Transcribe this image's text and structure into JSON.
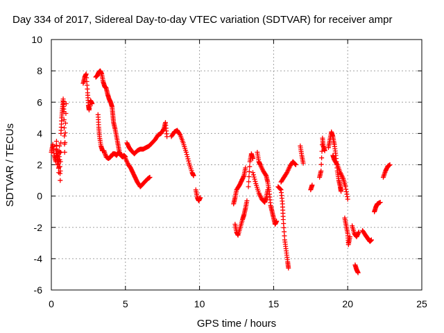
{
  "chart_data": {
    "type": "scatter",
    "title": "Day 334 of 2017, Sidereal Day-to-day VTEC variation (SDTVAR) for receiver ampr",
    "xlabel": "GPS time / hours",
    "ylabel": "SDTVAR / TECUs",
    "xlim": [
      0,
      25
    ],
    "ylim": [
      -6,
      10
    ],
    "xticks": [
      0,
      5,
      10,
      15,
      20,
      25
    ],
    "yticks": [
      -6,
      -4,
      -2,
      0,
      2,
      4,
      6,
      8,
      10
    ],
    "x_tick_labels": [
      "0",
      "5",
      "10",
      "15",
      "20",
      "25"
    ],
    "y_tick_labels": [
      "-6",
      "-4",
      "-2",
      "0",
      "2",
      "4",
      "6",
      "8",
      "10"
    ],
    "grid": true,
    "marker": "+",
    "marker_color": "#ff0000",
    "series": [
      {
        "name": "SDTVAR",
        "segments": [
          [
            [
              0.0,
              2.8
            ],
            [
              0.1,
              3.3
            ],
            [
              0.2,
              2.6
            ],
            [
              0.3,
              2.2
            ],
            [
              0.35,
              3.5
            ],
            [
              0.4,
              2.0
            ],
            [
              0.45,
              2.9
            ],
            [
              0.5,
              1.5
            ],
            [
              0.55,
              3.2
            ],
            [
              0.6,
              1.0
            ],
            [
              0.65,
              4.0
            ],
            [
              0.7,
              5.0
            ],
            [
              0.75,
              5.6
            ],
            [
              0.8,
              6.2
            ],
            [
              0.85,
              5.4
            ],
            [
              0.9,
              2.8
            ],
            [
              1.0,
              5.9
            ]
          ],
          [
            [
              2.15,
              7.2
            ],
            [
              2.25,
              7.6
            ],
            [
              2.35,
              7.8
            ],
            [
              2.45,
              6.6
            ],
            [
              2.5,
              5.8
            ],
            [
              2.55,
              5.5
            ],
            [
              2.65,
              6.1
            ],
            [
              2.75,
              5.9
            ]
          ],
          [
            [
              3.0,
              7.6
            ],
            [
              3.1,
              7.7
            ],
            [
              3.2,
              7.9
            ],
            [
              3.3,
              8.0
            ],
            [
              3.4,
              7.8
            ],
            [
              3.5,
              7.3
            ],
            [
              3.6,
              7.0
            ],
            [
              3.7,
              6.9
            ],
            [
              3.8,
              6.5
            ],
            [
              3.9,
              6.2
            ],
            [
              4.0,
              6.0
            ],
            [
              4.1,
              5.7
            ],
            [
              4.15,
              5.2
            ],
            [
              4.2,
              4.7
            ],
            [
              4.3,
              4.3
            ],
            [
              4.4,
              3.8
            ],
            [
              4.5,
              3.3
            ],
            [
              4.6,
              2.8
            ],
            [
              4.7,
              2.6
            ],
            [
              4.8,
              2.5
            ],
            [
              4.9,
              2.6
            ],
            [
              5.0,
              2.5
            ]
          ],
          [
            [
              3.15,
              5.2
            ],
            [
              3.2,
              4.4
            ],
            [
              3.25,
              3.8
            ],
            [
              3.35,
              3.2
            ],
            [
              3.45,
              2.9
            ],
            [
              3.55,
              2.9
            ],
            [
              3.7,
              2.5
            ],
            [
              3.85,
              2.4
            ],
            [
              4.0,
              2.5
            ],
            [
              4.15,
              2.7
            ],
            [
              4.3,
              2.7
            ],
            [
              4.4,
              2.6
            ],
            [
              4.55,
              2.8
            ]
          ],
          [
            [
              5.1,
              3.4
            ],
            [
              5.25,
              3.1
            ],
            [
              5.4,
              2.9
            ],
            [
              5.6,
              2.7
            ],
            [
              5.8,
              2.9
            ],
            [
              6.0,
              3.0
            ],
            [
              6.2,
              3.0
            ],
            [
              6.4,
              3.1
            ],
            [
              6.6,
              3.2
            ],
            [
              6.8,
              3.4
            ],
            [
              7.0,
              3.6
            ],
            [
              7.2,
              3.9
            ],
            [
              7.4,
              4.0
            ],
            [
              7.6,
              4.3
            ],
            [
              7.7,
              4.7
            ],
            [
              7.8,
              3.8
            ]
          ],
          [
            [
              5.0,
              2.4
            ],
            [
              5.2,
              2.0
            ],
            [
              5.35,
              1.8
            ],
            [
              5.5,
              1.5
            ],
            [
              5.65,
              1.2
            ],
            [
              5.8,
              0.9
            ],
            [
              6.0,
              0.6
            ],
            [
              6.1,
              0.7
            ],
            [
              6.3,
              0.9
            ],
            [
              6.5,
              1.1
            ],
            [
              6.65,
              1.2
            ]
          ],
          [
            [
              8.1,
              3.8
            ],
            [
              8.3,
              4.1
            ],
            [
              8.5,
              4.2
            ],
            [
              8.7,
              3.9
            ],
            [
              8.9,
              3.4
            ],
            [
              9.1,
              2.8
            ],
            [
              9.3,
              2.1
            ],
            [
              9.5,
              1.5
            ],
            [
              9.6,
              1.3
            ]
          ],
          [
            [
              9.75,
              0.4
            ],
            [
              9.85,
              -0.1
            ],
            [
              9.95,
              -0.3
            ],
            [
              10.05,
              -0.1
            ]
          ],
          [
            [
              12.3,
              -0.5
            ],
            [
              12.4,
              -0.1
            ],
            [
              12.5,
              0.4
            ],
            [
              12.7,
              0.7
            ],
            [
              12.85,
              1.0
            ],
            [
              13.0,
              1.3
            ],
            [
              13.1,
              1.8
            ]
          ],
          [
            [
              12.4,
              -1.8
            ],
            [
              12.5,
              -2.3
            ],
            [
              12.6,
              -2.5
            ],
            [
              12.75,
              -2.0
            ],
            [
              12.9,
              -1.5
            ],
            [
              13.0,
              -1.2
            ],
            [
              13.1,
              -0.8
            ],
            [
              13.2,
              -0.3
            ]
          ],
          [
            [
              13.3,
              0.6
            ],
            [
              13.4,
              2.2
            ],
            [
              13.5,
              2.7
            ],
            [
              13.6,
              2.4
            ]
          ],
          [
            [
              13.6,
              1.5
            ],
            [
              13.8,
              0.8
            ],
            [
              14.0,
              0.2
            ],
            [
              14.2,
              -0.2
            ],
            [
              14.4,
              -0.4
            ],
            [
              14.5,
              -0.1
            ],
            [
              14.6,
              0.4
            ]
          ],
          [
            [
              13.9,
              2.8
            ],
            [
              14.0,
              2.2
            ],
            [
              14.1,
              2.0
            ],
            [
              14.3,
              1.6
            ],
            [
              14.5,
              1.3
            ],
            [
              14.6,
              0.9
            ],
            [
              14.7,
              0.3
            ],
            [
              14.8,
              -0.6
            ],
            [
              14.9,
              -1.0
            ],
            [
              15.0,
              -1.4
            ],
            [
              15.1,
              -1.8
            ],
            [
              15.2,
              -1.6
            ]
          ],
          [
            [
              15.3,
              0.6
            ],
            [
              15.5,
              0.4
            ],
            [
              15.6,
              -0.5
            ],
            [
              15.65,
              -1.5
            ],
            [
              15.75,
              -2.8
            ],
            [
              15.85,
              -3.5
            ],
            [
              15.95,
              -4.2
            ],
            [
              16.0,
              -4.6
            ]
          ],
          [
            [
              15.5,
              0.9
            ],
            [
              15.7,
              1.2
            ],
            [
              15.9,
              1.5
            ],
            [
              16.1,
              1.9
            ],
            [
              16.3,
              2.2
            ],
            [
              16.5,
              2.0
            ]
          ],
          [
            [
              16.8,
              3.2
            ],
            [
              16.9,
              2.6
            ],
            [
              17.0,
              2.1
            ]
          ],
          [
            [
              17.5,
              0.4
            ],
            [
              17.6,
              0.7
            ]
          ],
          [
            [
              18.1,
              1.2
            ],
            [
              18.2,
              1.6
            ],
            [
              18.3,
              3.7
            ],
            [
              18.35,
              3.2
            ],
            [
              18.45,
              2.9
            ]
          ],
          [
            [
              18.7,
              3.1
            ],
            [
              18.8,
              3.6
            ],
            [
              18.9,
              4.1
            ],
            [
              19.0,
              3.8
            ],
            [
              19.1,
              3.3
            ],
            [
              19.2,
              2.6
            ],
            [
              19.3,
              1.6
            ],
            [
              19.4,
              1.0
            ],
            [
              19.5,
              0.6
            ],
            [
              19.55,
              0.3
            ]
          ],
          [
            [
              19.0,
              2.6
            ],
            [
              19.1,
              2.3
            ],
            [
              19.3,
              2.0
            ],
            [
              19.5,
              1.5
            ],
            [
              19.7,
              1.1
            ],
            [
              19.85,
              0.6
            ],
            [
              20.0,
              -0.2
            ]
          ],
          [
            [
              19.8,
              -1.4
            ],
            [
              19.9,
              -1.9
            ],
            [
              20.0,
              -2.4
            ],
            [
              20.05,
              -3.1
            ],
            [
              20.15,
              -2.6
            ]
          ],
          [
            [
              20.3,
              -1.9
            ],
            [
              20.45,
              -2.4
            ],
            [
              20.6,
              -2.6
            ],
            [
              20.75,
              -2.3
            ]
          ],
          [
            [
              20.5,
              -4.4
            ],
            [
              20.6,
              -4.7
            ],
            [
              20.7,
              -4.9
            ]
          ],
          [
            [
              21.0,
              -2.2
            ],
            [
              21.2,
              -2.5
            ],
            [
              21.35,
              -2.7
            ],
            [
              21.5,
              -2.9
            ],
            [
              21.6,
              -2.8
            ]
          ],
          [
            [
              21.8,
              -1.0
            ],
            [
              21.9,
              -0.7
            ],
            [
              22.0,
              -0.5
            ],
            [
              22.2,
              -0.4
            ]
          ],
          [
            [
              22.4,
              1.2
            ],
            [
              22.55,
              1.6
            ],
            [
              22.7,
              1.9
            ],
            [
              22.85,
              2.0
            ]
          ]
        ]
      }
    ]
  }
}
